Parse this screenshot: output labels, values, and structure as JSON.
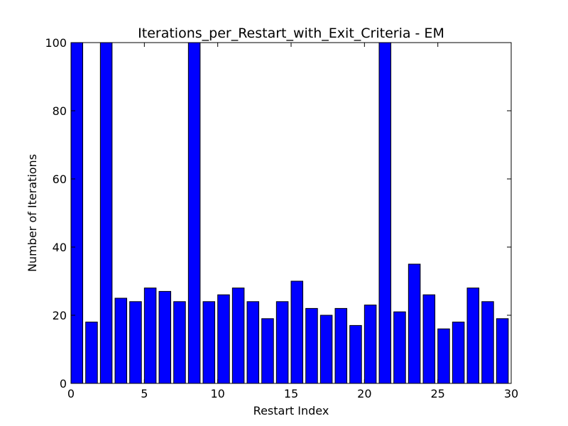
{
  "chart_data": {
    "type": "bar",
    "title": "Iterations_per_Restart_with_Exit_Criteria - EM",
    "xlabel": "Restart Index",
    "ylabel": "Number of Iterations",
    "x": [
      0,
      1,
      2,
      3,
      4,
      5,
      6,
      7,
      8,
      9,
      10,
      11,
      12,
      13,
      14,
      15,
      16,
      17,
      18,
      19,
      20,
      21,
      22,
      23,
      24,
      25,
      26,
      27,
      28,
      29
    ],
    "values": [
      100,
      18,
      100,
      25,
      24,
      28,
      27,
      24,
      100,
      24,
      26,
      28,
      24,
      19,
      24,
      30,
      22,
      20,
      22,
      17,
      23,
      100,
      21,
      35,
      26,
      16,
      18,
      28,
      24,
      19
    ],
    "bar_width": 0.8,
    "xlim": [
      0,
      30
    ],
    "ylim": [
      0,
      100
    ],
    "xticks": [
      0,
      5,
      10,
      15,
      20,
      25,
      30
    ],
    "yticks": [
      0,
      20,
      40,
      60,
      80,
      100
    ],
    "grid": false,
    "bar_color": "#0000ff",
    "edge_color": "#000000"
  }
}
